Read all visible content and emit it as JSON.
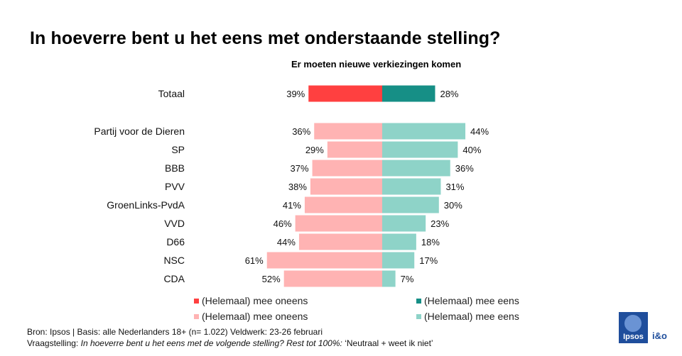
{
  "title": "In hoeverre bent u het eens met onderstaande stelling?",
  "subtitle": "Er moeten nieuwe verkiezingen komen",
  "chart_data": {
    "type": "bar",
    "orientation": "horizontal-diverging",
    "title": "In hoeverre bent u het eens met onderstaande stelling?",
    "subtitle": "Er moeten nieuwe verkiezingen komen",
    "categories": [
      "Totaal",
      "Partij voor de Dieren",
      "SP",
      "BBB",
      "PVV",
      "GroenLinks-PvdA",
      "VVD",
      "D66",
      "NSC",
      "CDA"
    ],
    "series": [
      {
        "name": "(Helemaal) mee oneens",
        "values": [
          39,
          36,
          29,
          37,
          38,
          41,
          46,
          44,
          61,
          52
        ]
      },
      {
        "name": "(Helemaal) mee eens",
        "values": [
          28,
          44,
          40,
          36,
          31,
          30,
          23,
          18,
          17,
          7
        ]
      }
    ],
    "value_format": "{v}%",
    "colors": {
      "total_disagree": "#ff4040",
      "total_agree": "#168f86",
      "party_disagree": "#ffb3b3",
      "party_agree": "#8ed3c8"
    },
    "legend_placement": "bottom",
    "grid": false
  },
  "legend": [
    {
      "label": "(Helemaal) mee oneens",
      "color": "#ff4040"
    },
    {
      "label": "(Helemaal) mee eens",
      "color": "#168f86"
    },
    {
      "label": "(Helemaal) mee oneens",
      "color": "#ffb3b3"
    },
    {
      "label": "(Helemaal) mee eens",
      "color": "#8ed3c8"
    }
  ],
  "footer": {
    "source": "Bron: Ipsos | Basis: alle Nederlanders  18+ (n= 1.022) Veldwerk: 23-26 februari",
    "question_prefix": "Vraagstelling: ",
    "question": "In hoeverre  bent u het eens met de volgende  stelling? Rest tot 100%:",
    "question_suffix": " ‘Neutraal + weet ik niet’"
  },
  "logo": {
    "brand": "Ipsos",
    "partner": "i&o"
  }
}
